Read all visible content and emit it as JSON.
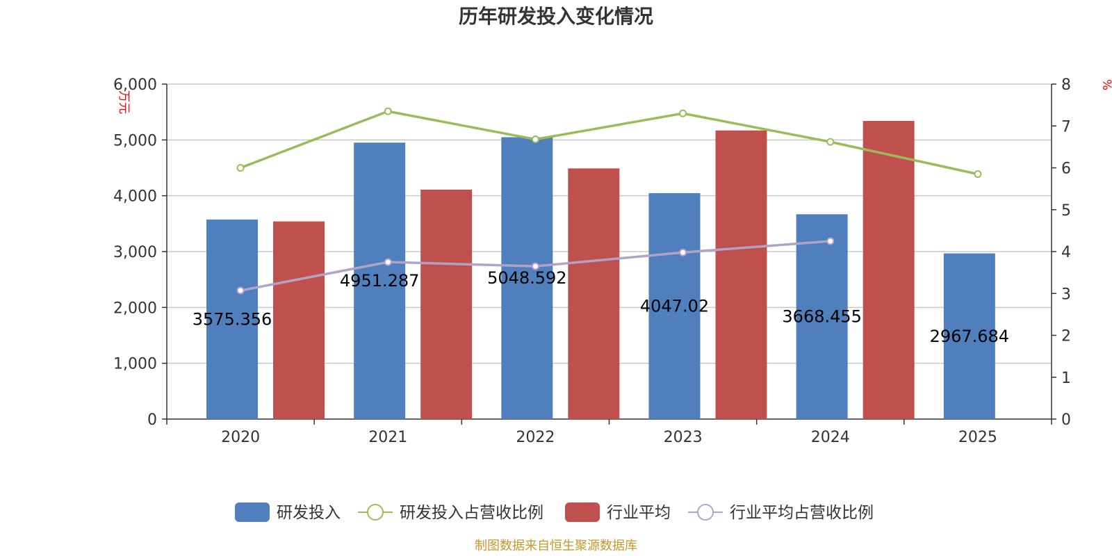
{
  "chart_data": {
    "type": "bar",
    "title": "历年研发投入变化情况",
    "categories": [
      "2020",
      "2021",
      "2022",
      "2023",
      "2024",
      "2025"
    ],
    "y_left": {
      "unit": "万元",
      "range": [
        0,
        6000
      ],
      "ticks": [
        "0",
        "1,000",
        "2,000",
        "3,000",
        "4,000",
        "5,000",
        "6,000"
      ]
    },
    "y_right": {
      "unit": "%",
      "range": [
        0,
        8
      ],
      "ticks": [
        "0",
        "1",
        "2",
        "3",
        "4",
        "5",
        "6",
        "7",
        "8"
      ]
    },
    "series": [
      {
        "name": "研发投入",
        "kind": "bar",
        "axis": "left",
        "color": "#4f7fbd",
        "values": [
          3575.356,
          4951.287,
          5048.592,
          4047.02,
          3668.455,
          2967.684
        ],
        "labels": [
          "3575.356",
          "4951.287",
          "5048.592",
          "4047.02",
          "3668.455",
          "2967.684"
        ]
      },
      {
        "name": "研发投入占营收比例",
        "kind": "line",
        "axis": "right",
        "color": "#9bbb59",
        "values": [
          6.0,
          7.35,
          6.68,
          7.3,
          6.62,
          5.85
        ]
      },
      {
        "name": "行业平均",
        "kind": "bar",
        "axis": "left",
        "color": "#c0504d",
        "values": [
          3540,
          4110,
          4490,
          5170,
          5340,
          null
        ]
      },
      {
        "name": "行业平均占营收比例",
        "kind": "line",
        "axis": "right",
        "color": "#b3a2c7",
        "values": [
          3.07,
          3.75,
          3.65,
          3.98,
          4.25,
          null
        ]
      }
    ],
    "legend_position": "bottom",
    "grid": true
  },
  "footer": {
    "source": "制图数据来自恒生聚源数据库"
  }
}
